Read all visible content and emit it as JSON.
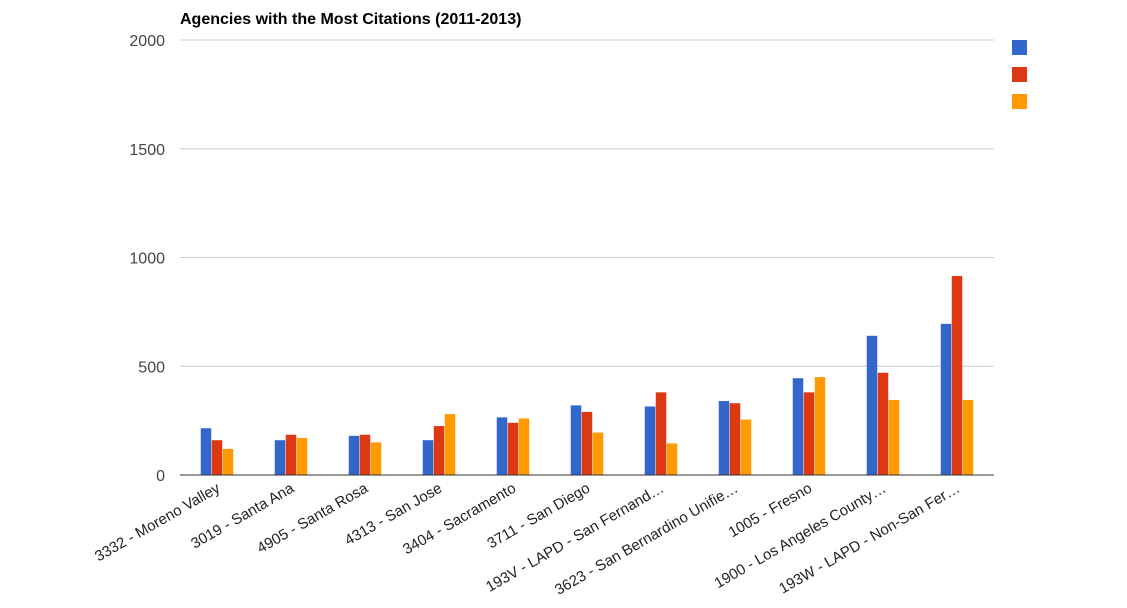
{
  "chart_data": {
    "type": "bar",
    "title": "Agencies with the Most Citations (2011-2013)",
    "xlabel": "",
    "ylabel": "",
    "ylim": [
      0,
      2000
    ],
    "yticks": [
      0,
      500,
      1000,
      1500,
      2000
    ],
    "grid": true,
    "legend_position": "top-right",
    "categories": [
      "3332 - Moreno Valley",
      "3019 - Santa Ana",
      "4905 - Santa Rosa",
      "4313 - San Jose",
      "3404 - Sacramento",
      "3711 - San Diego",
      "193V - LAPD - San Fernand…",
      "3623 - San Bernardino Unifie…",
      "1005 - Fresno",
      "1900 - Los Angeles County…",
      "193W - LAPD - Non-San Fer…"
    ],
    "series": [
      {
        "color": "#3366cc",
        "values": [
          215,
          160,
          180,
          160,
          265,
          320,
          315,
          340,
          445,
          640,
          695
        ]
      },
      {
        "color": "#dc3912",
        "values": [
          160,
          185,
          185,
          225,
          240,
          290,
          380,
          330,
          380,
          470,
          915
        ]
      },
      {
        "color": "#ff9900",
        "values": [
          120,
          170,
          150,
          280,
          260,
          195,
          145,
          255,
          450,
          345,
          345
        ]
      }
    ]
  }
}
